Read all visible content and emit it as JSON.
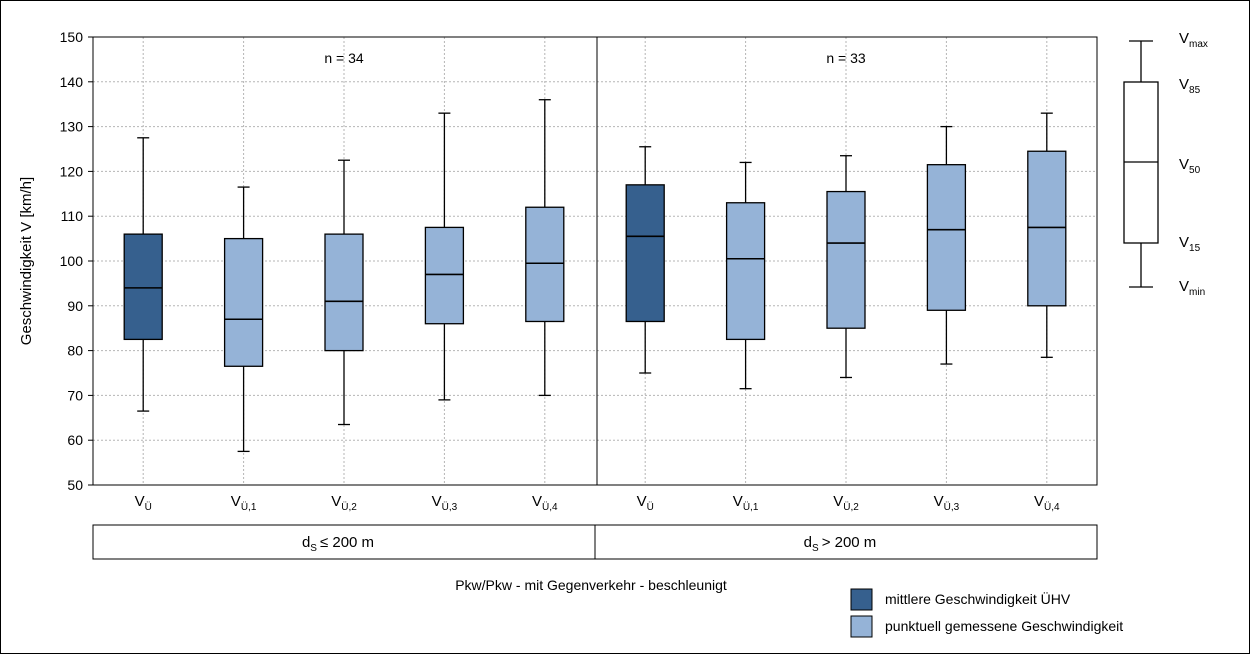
{
  "chart_data": {
    "type": "box",
    "ylabel": "Geschwindigkeit V [km/h]",
    "ylim": [
      50,
      150
    ],
    "yticks": [
      50,
      60,
      70,
      80,
      90,
      100,
      110,
      120,
      130,
      140,
      150
    ],
    "grid": true,
    "xlabel": "Pkw/Pkw - mit Gegenverkehr - beschleunigt",
    "categories": [
      {
        "base": "V",
        "sub": "Ü"
      },
      {
        "base": "V",
        "sub": "Ü,1"
      },
      {
        "base": "V",
        "sub": "Ü,2"
      },
      {
        "base": "V",
        "sub": "Ü,3"
      },
      {
        "base": "V",
        "sub": "Ü,4"
      },
      {
        "base": "V",
        "sub": "Ü"
      },
      {
        "base": "V",
        "sub": "Ü,1"
      },
      {
        "base": "V",
        "sub": "Ü,2"
      },
      {
        "base": "V",
        "sub": "Ü,3"
      },
      {
        "base": "V",
        "sub": "Ü,4"
      }
    ],
    "groups": [
      {
        "n_label": "n = 34",
        "label_base": "d",
        "label_sub": "S",
        "label_rest": "≤ 200 m"
      },
      {
        "n_label": "n = 33",
        "label_base": "d",
        "label_sub": "S",
        "label_rest": "> 200 m"
      }
    ],
    "boxes": [
      {
        "min": 66.5,
        "q15": 82.5,
        "median": 94,
        "q85": 106,
        "max": 127.5,
        "series": "dark"
      },
      {
        "min": 57.5,
        "q15": 76.5,
        "median": 87,
        "q85": 105,
        "max": 116.5,
        "series": "light"
      },
      {
        "min": 63.5,
        "q15": 80,
        "median": 91,
        "q85": 106,
        "max": 122.5,
        "series": "light"
      },
      {
        "min": 69,
        "q15": 86,
        "median": 97,
        "q85": 107.5,
        "max": 133,
        "series": "light"
      },
      {
        "min": 70,
        "q15": 86.5,
        "median": 99.5,
        "q85": 112,
        "max": 136,
        "series": "light"
      },
      {
        "min": 75,
        "q15": 86.5,
        "median": 105.5,
        "q85": 117,
        "max": 125.5,
        "series": "dark"
      },
      {
        "min": 71.5,
        "q15": 82.5,
        "median": 100.5,
        "q85": 113,
        "max": 122,
        "series": "light"
      },
      {
        "min": 74,
        "q15": 85,
        "median": 104,
        "q85": 115.5,
        "max": 123.5,
        "series": "light"
      },
      {
        "min": 77,
        "q15": 89,
        "median": 107,
        "q85": 121.5,
        "max": 130,
        "series": "light"
      },
      {
        "min": 78.5,
        "q15": 90,
        "median": 107.5,
        "q85": 124.5,
        "max": 133,
        "series": "light"
      }
    ],
    "legend": [
      {
        "key": "dark",
        "label": "mittlere Geschwindigkeit ÜHV",
        "color": "#36608e"
      },
      {
        "key": "light",
        "label": "punktuell gemessene Geschwindigkeit",
        "color": "#95b3d7"
      }
    ],
    "key_labels": [
      {
        "base": "V",
        "sub": "max"
      },
      {
        "base": "V",
        "sub": "85"
      },
      {
        "base": "V",
        "sub": "50"
      },
      {
        "base": "V",
        "sub": "15"
      },
      {
        "base": "V",
        "sub": "min"
      }
    ]
  }
}
